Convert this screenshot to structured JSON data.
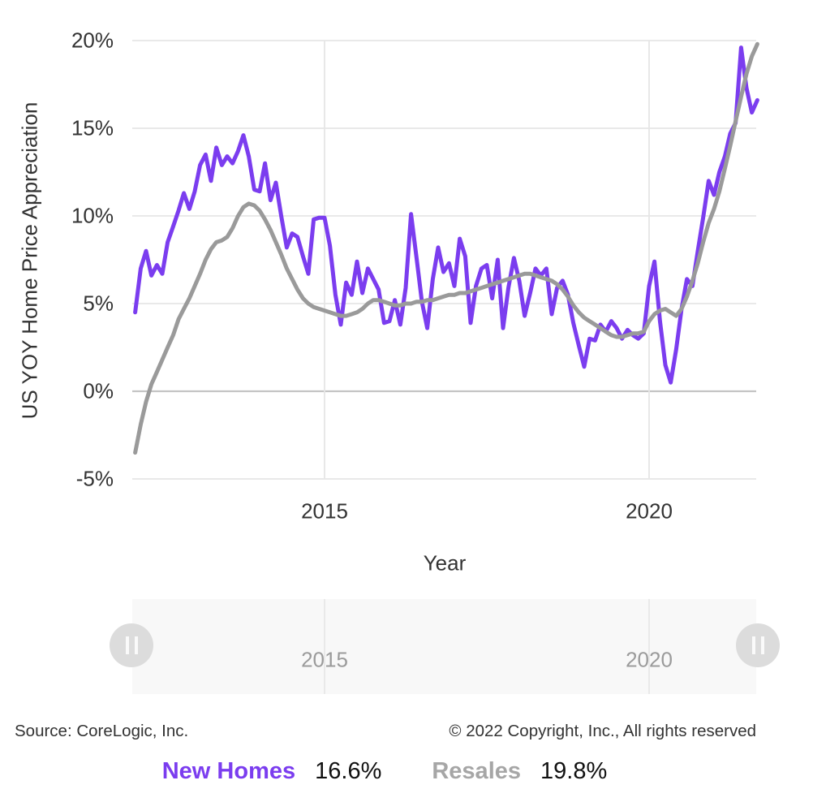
{
  "y_axis": {
    "title": "US YOY Home Price Appreciation",
    "ticks": [
      "20%",
      "15%",
      "10%",
      "5%",
      "0%",
      "-5%"
    ],
    "tick_values": [
      20,
      15,
      10,
      5,
      0,
      -5
    ]
  },
  "x_axis": {
    "title": "Year",
    "ticks": [
      "2015",
      "2020"
    ],
    "tick_values": [
      2015,
      2020
    ]
  },
  "navigator": {
    "labels": [
      "2015",
      "2020"
    ],
    "handle_icon": "drag-handle"
  },
  "footer": {
    "source": "Source: CoreLogic, Inc.",
    "copyright": "© 2022 Copyright, Inc., All rights reserved"
  },
  "legend": [
    {
      "label": "New Homes",
      "value": "16.6%",
      "color": "#7B3DEF"
    },
    {
      "label": "Resales",
      "value": "19.8%",
      "color": "#A6A6A6"
    }
  ],
  "colors": {
    "accent_purple": "#7B3DEF",
    "line_gray": "#9A9A9A",
    "legend_gray": "#A6A6A6",
    "grid_line": "#E6E6E6",
    "zero_line": "#C4C4C4",
    "nav_track": "#F8F8F8",
    "nav_grid": "#E9E9E9",
    "nav_label": "#9B9B9B",
    "handle": "#DCDCDC",
    "text": "#333333"
  },
  "chart_data": {
    "type": "line",
    "title": "",
    "xlabel": "Year",
    "ylabel": "US YOY Home Price Appreciation",
    "xlim": [
      2012.0,
      2021.75
    ],
    "ylim": [
      -5,
      20
    ],
    "grid": true,
    "legend_position": "bottom",
    "x": [
      2012.083,
      2012.167,
      2012.25,
      2012.333,
      2012.417,
      2012.5,
      2012.583,
      2012.667,
      2012.75,
      2012.833,
      2012.917,
      2013.0,
      2013.083,
      2013.167,
      2013.25,
      2013.333,
      2013.417,
      2013.5,
      2013.583,
      2013.667,
      2013.75,
      2013.833,
      2013.917,
      2014.0,
      2014.083,
      2014.167,
      2014.25,
      2014.333,
      2014.417,
      2014.5,
      2014.583,
      2014.667,
      2014.75,
      2014.833,
      2014.917,
      2015.0,
      2015.083,
      2015.167,
      2015.25,
      2015.333,
      2015.417,
      2015.5,
      2015.583,
      2015.667,
      2015.75,
      2015.833,
      2015.917,
      2016.0,
      2016.083,
      2016.167,
      2016.25,
      2016.333,
      2016.417,
      2016.5,
      2016.583,
      2016.667,
      2016.75,
      2016.833,
      2016.917,
      2017.0,
      2017.083,
      2017.167,
      2017.25,
      2017.333,
      2017.417,
      2017.5,
      2017.583,
      2017.667,
      2017.75,
      2017.833,
      2017.917,
      2018.0,
      2018.083,
      2018.167,
      2018.25,
      2018.333,
      2018.417,
      2018.5,
      2018.583,
      2018.667,
      2018.75,
      2018.833,
      2018.917,
      2019.0,
      2019.083,
      2019.167,
      2019.25,
      2019.333,
      2019.417,
      2019.5,
      2019.583,
      2019.667,
      2019.75,
      2019.833,
      2019.917,
      2020.0,
      2020.083,
      2020.167,
      2020.25,
      2020.333,
      2020.417,
      2020.5,
      2020.583,
      2020.667,
      2020.75,
      2020.833,
      2020.917,
      2021.0,
      2021.083,
      2021.167,
      2021.25,
      2021.333,
      2021.417,
      2021.5,
      2021.583,
      2021.667
    ],
    "series": [
      {
        "name": "New Homes",
        "color": "#7B3DEF",
        "final_label": "16.6%",
        "values": [
          4.5,
          7.0,
          8.0,
          6.6,
          7.2,
          6.7,
          8.5,
          9.4,
          10.3,
          11.3,
          10.4,
          11.4,
          12.9,
          13.5,
          12.0,
          13.9,
          12.9,
          13.4,
          13.0,
          13.7,
          14.6,
          13.4,
          11.5,
          11.4,
          13.0,
          10.9,
          11.9,
          10.0,
          8.2,
          9.0,
          8.8,
          7.7,
          6.7,
          9.8,
          9.9,
          9.9,
          8.3,
          5.5,
          3.8,
          6.2,
          5.5,
          7.4,
          5.6,
          7.0,
          6.4,
          5.8,
          3.9,
          4.0,
          5.2,
          3.8,
          5.9,
          10.1,
          7.6,
          5.1,
          3.6,
          6.4,
          8.2,
          6.8,
          7.3,
          6.0,
          8.7,
          7.7,
          3.9,
          6.0,
          7.0,
          7.2,
          5.3,
          7.5,
          3.6,
          5.9,
          7.6,
          6.3,
          4.3,
          5.6,
          7.0,
          6.6,
          7.0,
          4.4,
          5.9,
          6.3,
          5.5,
          3.9,
          2.6,
          1.4,
          3.0,
          2.9,
          3.8,
          3.4,
          4.0,
          3.6,
          3.0,
          3.5,
          3.2,
          3.0,
          3.3,
          6.0,
          7.4,
          4.0,
          1.5,
          0.5,
          2.4,
          4.7,
          6.4,
          6.0,
          8.0,
          9.9,
          12.0,
          11.2,
          12.5,
          13.4,
          14.7,
          15.3,
          19.6,
          17.3,
          15.9,
          16.6
        ]
      },
      {
        "name": "Resales",
        "color": "#9A9A9A",
        "final_label": "19.8%",
        "values": [
          -3.5,
          -1.9,
          -0.6,
          0.4,
          1.1,
          1.8,
          2.5,
          3.2,
          4.1,
          4.7,
          5.3,
          6.0,
          6.7,
          7.5,
          8.1,
          8.5,
          8.6,
          8.8,
          9.3,
          10.0,
          10.5,
          10.7,
          10.6,
          10.3,
          9.8,
          9.2,
          8.5,
          7.8,
          7.0,
          6.4,
          5.8,
          5.3,
          5.0,
          4.8,
          4.7,
          4.6,
          4.5,
          4.4,
          4.3,
          4.3,
          4.4,
          4.5,
          4.7,
          5.0,
          5.2,
          5.2,
          5.1,
          5.0,
          4.9,
          4.9,
          5.0,
          5.0,
          5.1,
          5.1,
          5.2,
          5.2,
          5.3,
          5.4,
          5.5,
          5.5,
          5.6,
          5.6,
          5.7,
          5.8,
          5.9,
          6.0,
          6.1,
          6.2,
          6.3,
          6.4,
          6.5,
          6.6,
          6.7,
          6.7,
          6.6,
          6.5,
          6.4,
          6.3,
          6.1,
          5.8,
          5.4,
          4.9,
          4.5,
          4.2,
          4.0,
          3.8,
          3.6,
          3.4,
          3.2,
          3.1,
          3.1,
          3.2,
          3.3,
          3.3,
          3.4,
          4.0,
          4.4,
          4.6,
          4.7,
          4.5,
          4.3,
          4.7,
          5.4,
          6.3,
          7.3,
          8.5,
          9.6,
          10.4,
          11.4,
          12.7,
          14.0,
          15.4,
          16.8,
          18.1,
          19.1,
          19.8
        ]
      }
    ]
  }
}
